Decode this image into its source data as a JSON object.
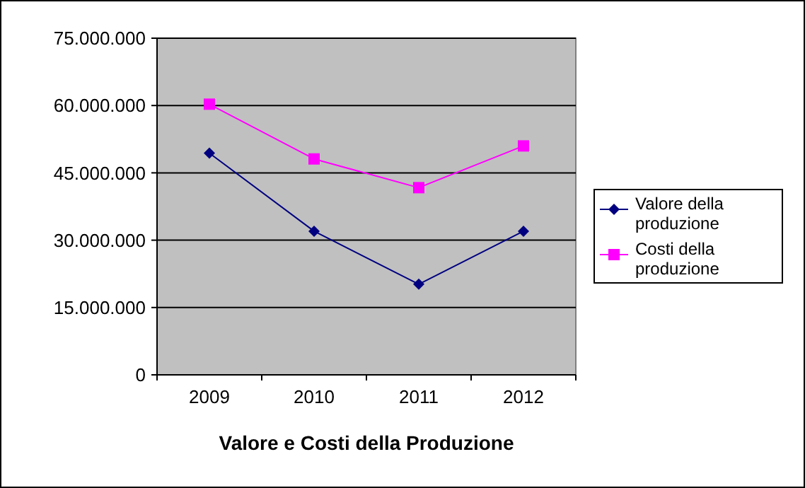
{
  "chart_data": {
    "type": "line",
    "title": "Valore e Costi della Produzione",
    "categories": [
      "2009",
      "2010",
      "2011",
      "2012"
    ],
    "series": [
      {
        "name": "Valore della produzione",
        "color": "#000080",
        "marker": "diamond",
        "values": [
          49400000,
          32000000,
          20200000,
          32000000
        ]
      },
      {
        "name": "Costi della produzione",
        "color": "#ff00ff",
        "marker": "square",
        "values": [
          60300000,
          48100000,
          41700000,
          51000000
        ]
      }
    ],
    "ylim": [
      0,
      75000000
    ],
    "yticks": [
      {
        "value": 0,
        "label": "0"
      },
      {
        "value": 15000000,
        "label": "15.000.000"
      },
      {
        "value": 30000000,
        "label": "30.000.000"
      },
      {
        "value": 45000000,
        "label": "45.000.000"
      },
      {
        "value": 60000000,
        "label": "60.000.000"
      },
      {
        "value": 75000000,
        "label": "75.000.000"
      }
    ],
    "grid": "y",
    "legend": "right"
  }
}
